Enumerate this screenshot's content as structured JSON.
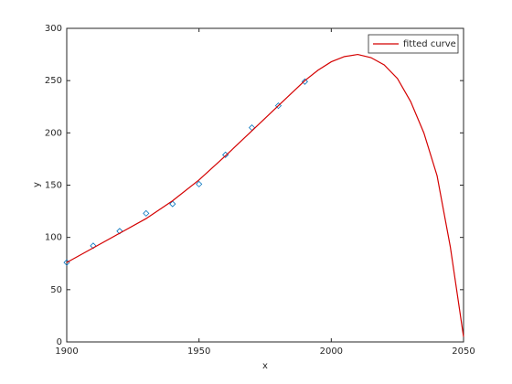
{
  "chart_data": {
    "type": "line",
    "xlabel": "x",
    "ylabel": "y",
    "xlim": [
      1900,
      2050
    ],
    "xticks": [
      1900,
      1950,
      2000,
      2050
    ],
    "ylim": [
      0,
      300
    ],
    "yticks": [
      0,
      50,
      100,
      150,
      200,
      250,
      300
    ],
    "legend": "northeast",
    "series": [
      {
        "color": "#0072bd",
        "marker": "diamond",
        "x": [
          1900,
          1910,
          1920,
          1930,
          1940,
          1950,
          1960,
          1970,
          1980,
          1990
        ],
        "values": [
          76,
          92,
          106,
          123,
          132,
          151,
          179,
          205,
          226,
          249
        ]
      },
      {
        "name": "fitted curve",
        "color": "#d40000",
        "x": [
          1900,
          1910,
          1920,
          1930,
          1940,
          1950,
          1960,
          1970,
          1980,
          1990,
          1995,
          2000,
          2005,
          2010,
          2015,
          2020,
          2025,
          2030,
          2035,
          2040,
          2045,
          2050
        ],
        "values": [
          76,
          90,
          104,
          118,
          135,
          155,
          178,
          202,
          226,
          250,
          260,
          268,
          273,
          275,
          272,
          265,
          252,
          230,
          200,
          159,
          91,
          5
        ]
      }
    ]
  }
}
